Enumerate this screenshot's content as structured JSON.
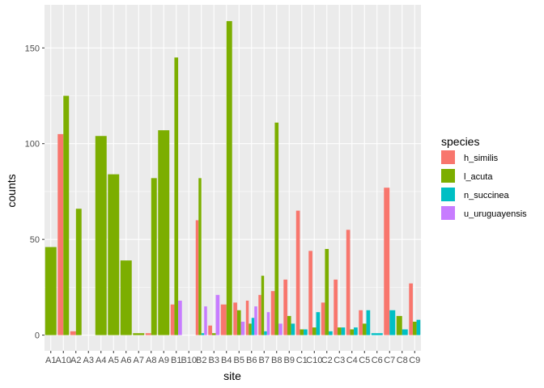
{
  "chart_data": {
    "type": "bar",
    "bar_mode": "dodge",
    "xlabel": "site",
    "ylabel": "counts",
    "ylim": [
      -8.2,
      172.5
    ],
    "yticks": [
      0,
      50,
      100,
      150
    ],
    "grid": true,
    "legend_title": "species",
    "legend_position": "right",
    "categories": [
      "A1",
      "A10",
      "A2",
      "A3",
      "A4",
      "A5",
      "A6",
      "A7",
      "A8",
      "A9",
      "B1",
      "B10",
      "B2",
      "B3",
      "B4",
      "B5",
      "B6",
      "B7",
      "B8",
      "B9",
      "C1",
      "C10",
      "C2",
      "C3",
      "C4",
      "C5",
      "C6",
      "C7",
      "C8",
      "C9"
    ],
    "series": [
      {
        "name": "h_similis",
        "color": "#F8766D",
        "values": [
          null,
          105,
          2,
          null,
          null,
          null,
          null,
          null,
          1,
          null,
          16,
          null,
          60,
          5,
          16,
          17,
          18,
          21,
          23,
          29,
          65,
          44,
          17,
          29,
          55,
          13,
          null,
          77,
          null,
          27
        ]
      },
      {
        "name": "l_acuta",
        "color": "#7CAE00",
        "values": [
          46,
          125,
          66,
          null,
          104,
          84,
          39,
          1,
          82,
          107,
          145,
          null,
          82,
          1,
          164,
          13,
          6,
          31,
          111,
          10,
          3,
          4,
          45,
          4,
          3,
          6,
          null,
          null,
          10,
          7
        ]
      },
      {
        "name": "n_succinea",
        "color": "#00BFC4",
        "values": [
          null,
          null,
          null,
          null,
          null,
          null,
          null,
          null,
          null,
          null,
          null,
          null,
          1,
          null,
          null,
          null,
          9,
          2,
          null,
          6,
          3,
          12,
          2,
          4,
          4,
          13,
          1,
          13,
          3,
          8
        ]
      },
      {
        "name": "u_uruguayensis",
        "color": "#C77CFF",
        "values": [
          null,
          null,
          null,
          null,
          null,
          null,
          null,
          null,
          null,
          null,
          18,
          null,
          15,
          21,
          null,
          7,
          15,
          12,
          6,
          null,
          null,
          null,
          null,
          null,
          null,
          null,
          null,
          null,
          null,
          null
        ]
      }
    ]
  }
}
